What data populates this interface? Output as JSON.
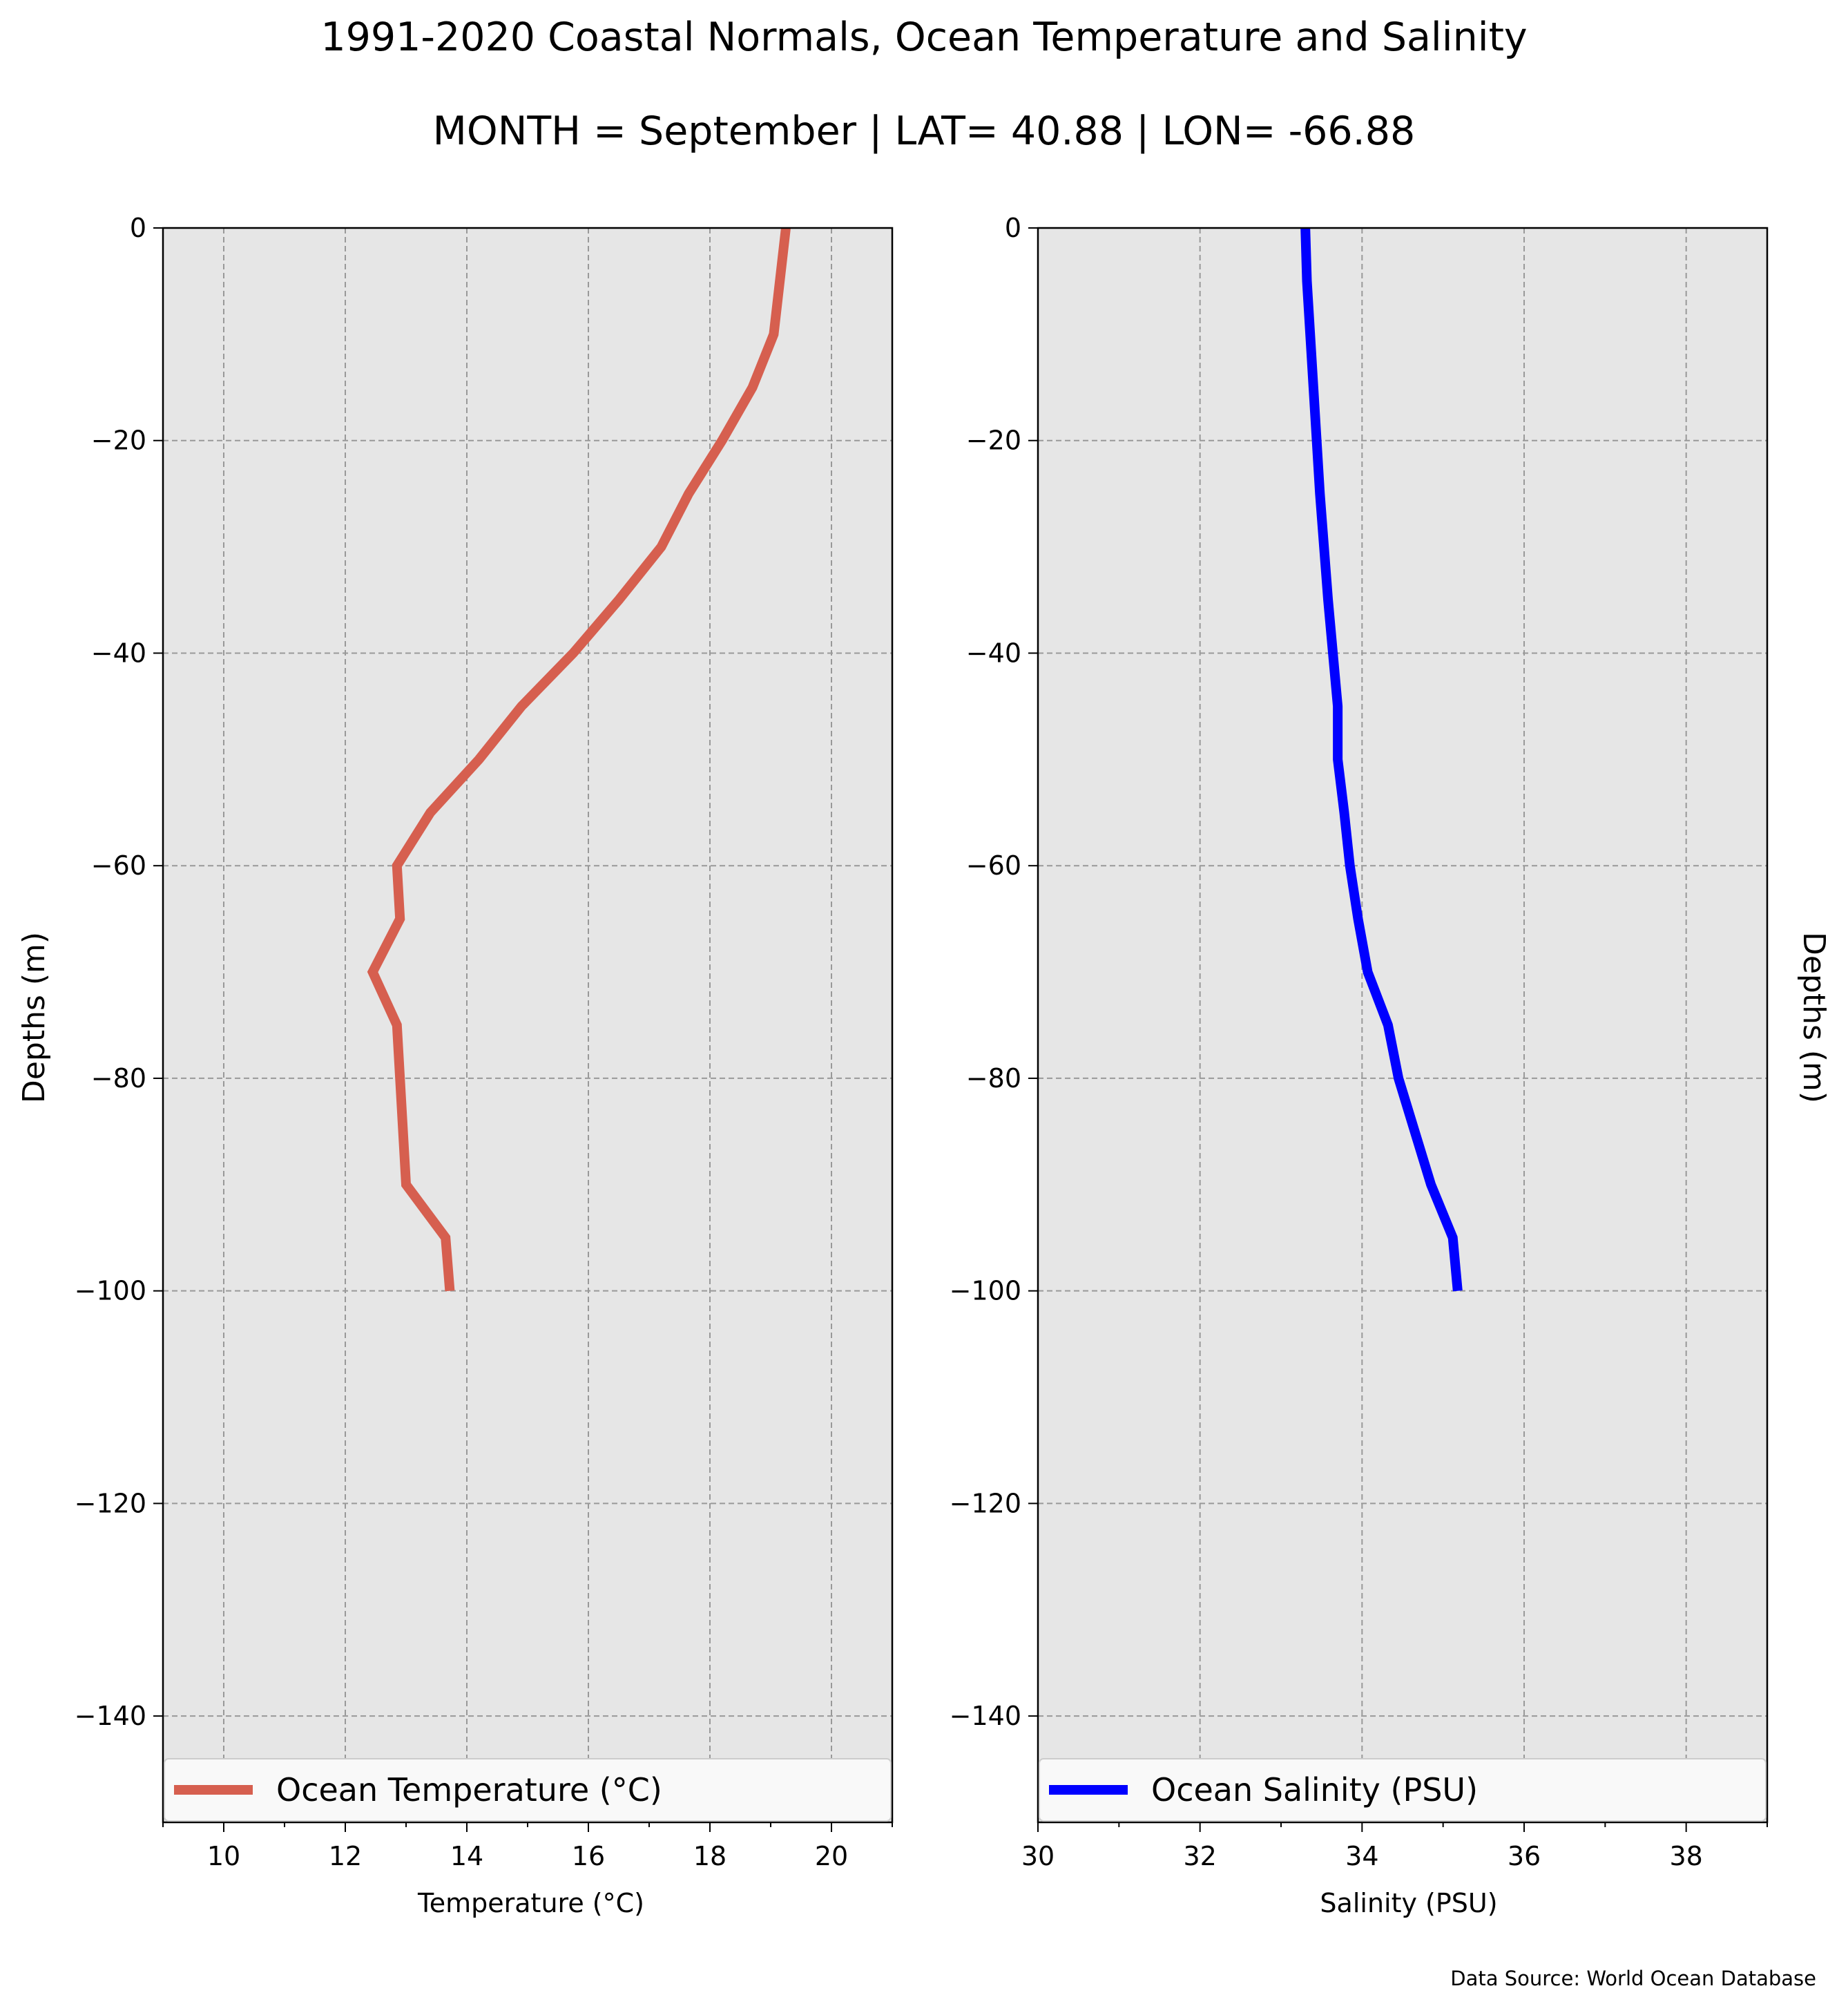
{
  "title": "1991-2020 Coastal Normals, Ocean Temperature and Salinity",
  "subtitle": "MONTH = September | LAT= 40.88 | LON= -66.88",
  "source": "Data Source: World Ocean Database",
  "colors": {
    "background": "#e6e6e6",
    "grid": "#999999",
    "temperature": "#d65f4f",
    "salinity": "#0000ff",
    "legend_bg": "#f9f9f9"
  },
  "chart_data": [
    {
      "type": "line",
      "xlabel": "Temperature ($^\\circ$C)",
      "xlabel_display": "Temperature (°C)",
      "ylabel": "Depths (m)",
      "xlim": [
        9,
        21
      ],
      "ylim": [
        -150,
        0
      ],
      "xticks": [
        "10",
        "12",
        "14",
        "16",
        "18",
        "20"
      ],
      "yticks": [
        "0",
        "−20",
        "−40",
        "−60",
        "−80",
        "−100",
        "−120",
        "−140"
      ],
      "grid": true,
      "legend_position": "bottom",
      "series": [
        {
          "name": "Ocean Temperature (°C)",
          "color": "#d65f4f",
          "x": [
            19.25,
            19.15,
            19.05,
            18.7,
            18.2,
            17.65,
            17.2,
            16.5,
            15.75,
            14.9,
            14.2,
            13.4,
            12.85,
            12.9,
            12.45,
            12.85,
            12.9,
            13.0,
            13.65,
            13.72
          ],
          "y": [
            0,
            -5,
            -10,
            -15,
            -20,
            -25,
            -30,
            -35,
            -40,
            -45,
            -50,
            -55,
            -60,
            -65,
            -70,
            -75,
            -80,
            -90,
            -95,
            -100
          ]
        }
      ]
    },
    {
      "type": "line",
      "xlabel": "Salinity (PSU)",
      "ylabel": "Depths (m)",
      "xlim": [
        30,
        39
      ],
      "ylim": [
        -150,
        0
      ],
      "xticks": [
        "30",
        "32",
        "34",
        "36",
        "38"
      ],
      "yticks": [
        "0",
        "−20",
        "−40",
        "−60",
        "−80",
        "−100",
        "−120",
        "−140"
      ],
      "grid": true,
      "legend_position": "bottom",
      "series": [
        {
          "name": "Ocean Salinity (PSU)",
          "color": "#0000ff",
          "x": [
            33.3,
            33.32,
            33.36,
            33.4,
            33.44,
            33.48,
            33.53,
            33.58,
            33.64,
            33.7,
            33.7,
            33.78,
            33.85,
            33.95,
            34.07,
            34.32,
            34.45,
            34.65,
            34.85,
            35.12,
            35.18
          ],
          "y": [
            0,
            -5,
            -10,
            -15,
            -20,
            -25,
            -30,
            -35,
            -40,
            -45,
            -50,
            -55,
            -60,
            -65,
            -70,
            -75,
            -80,
            -85,
            -90,
            -95,
            -100
          ]
        }
      ]
    }
  ]
}
